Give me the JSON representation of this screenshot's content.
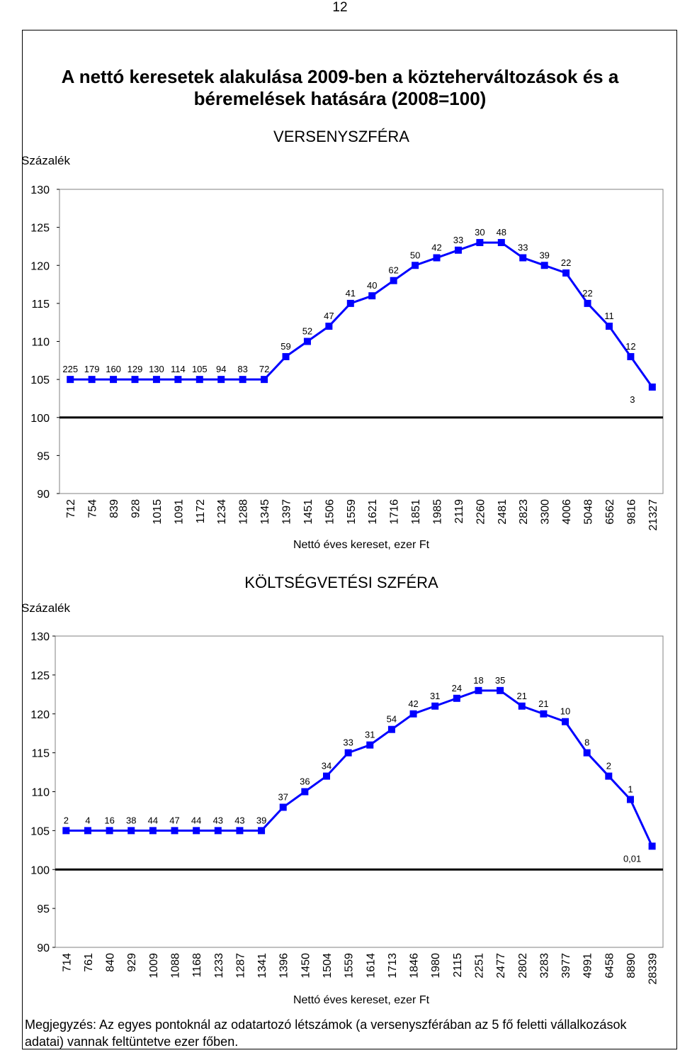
{
  "page_number": "12",
  "main_title": "A nettó keresetek alakulása 2009-ben a közteherváltozások és a béremelések hatására (2008=100)",
  "note": "Megjegyzés: Az egyes pontoknál az odatartozó létszámok (a versenyszférában az 5 fő feletti vállalkozások adatai) vannak feltüntetve ezer főben.",
  "colors": {
    "series": "#0000ff",
    "axis": "#000000",
    "baseline": "#000000"
  },
  "chart_data": [
    {
      "type": "line",
      "title": "VERSENYSZFÉRA",
      "ylabel": "Százalék",
      "xlabel": "Nettó éves kereset, ezer Ft",
      "ylim": [
        90,
        130
      ],
      "yticks": [
        130,
        125,
        120,
        115,
        110,
        105,
        100,
        95,
        90
      ],
      "baseline": 100,
      "grid": false,
      "legend": "none",
      "x": [
        "712",
        "754",
        "839",
        "928",
        "1015",
        "1091",
        "1172",
        "1234",
        "1288",
        "1345",
        "1397",
        "1451",
        "1506",
        "1559",
        "1621",
        "1716",
        "1851",
        "1985",
        "2119",
        "2260",
        "2481",
        "2823",
        "3300",
        "4006",
        "5048",
        "6562",
        "9816",
        "21327"
      ],
      "values": [
        105,
        105,
        105,
        105,
        105,
        105,
        105,
        105,
        105,
        105,
        108,
        110,
        112,
        115,
        116,
        118,
        120,
        121,
        122,
        123,
        123,
        121,
        120,
        119,
        115,
        112,
        108,
        104
      ],
      "point_labels": [
        "225",
        "179",
        "160",
        "129",
        "130",
        "114",
        "105",
        "94",
        "83",
        "72",
        "59",
        "52",
        "47",
        "41",
        "40",
        "62",
        "50",
        "42",
        "33",
        "30",
        "48",
        "33",
        "39",
        "22",
        "22",
        "11",
        "12",
        "3"
      ]
    },
    {
      "type": "line",
      "title": "KÖLTSÉGVETÉSI SZFÉRA",
      "ylabel": "Százalék",
      "xlabel": "Nettó éves kereset, ezer Ft",
      "ylim": [
        90,
        130
      ],
      "yticks": [
        130,
        125,
        120,
        115,
        110,
        105,
        100,
        95,
        90
      ],
      "baseline": 100,
      "grid": false,
      "legend": "none",
      "x": [
        "714",
        "761",
        "840",
        "929",
        "1009",
        "1088",
        "1168",
        "1233",
        "1287",
        "1341",
        "1396",
        "1450",
        "1504",
        "1559",
        "1614",
        "1713",
        "1846",
        "1980",
        "2115",
        "2251",
        "2477",
        "2802",
        "3283",
        "3977",
        "4991",
        "6458",
        "8890",
        "28339"
      ],
      "values": [
        105,
        105,
        105,
        105,
        105,
        105,
        105,
        105,
        105,
        105,
        108,
        110,
        112,
        115,
        116,
        118,
        120,
        121,
        122,
        123,
        123,
        121,
        120,
        119,
        115,
        112,
        109,
        103
      ],
      "point_labels": [
        "2",
        "4",
        "16",
        "38",
        "44",
        "47",
        "44",
        "43",
        "43",
        "39",
        "37",
        "36",
        "34",
        "33",
        "31",
        "54",
        "42",
        "31",
        "24",
        "18",
        "35",
        "21",
        "21",
        "10",
        "8",
        "2",
        "1",
        "0,01"
      ]
    }
  ]
}
